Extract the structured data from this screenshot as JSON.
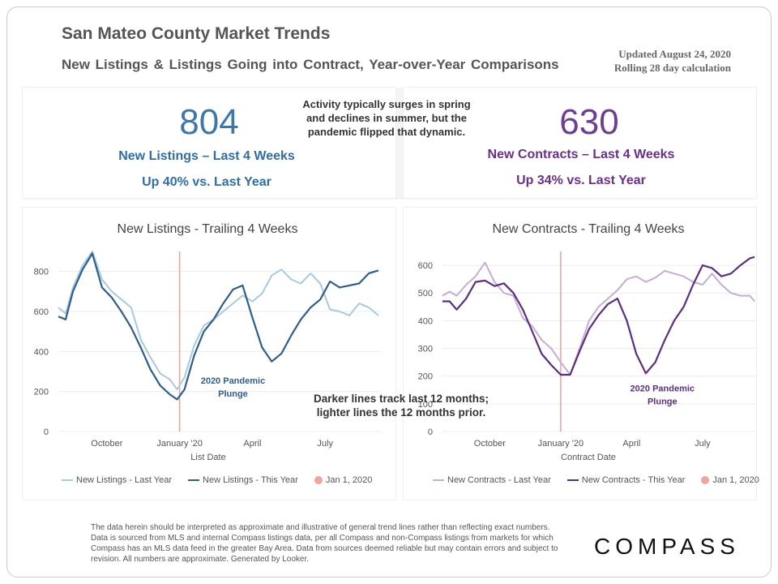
{
  "header": {
    "title": "San Mateo County Market Trends",
    "subtitle": "New Listings & Listings Going into Contract, Year-over-Year Comparisons",
    "updated_line1": "Updated August 24, 2020",
    "updated_line2": "Rolling 28 day calculation"
  },
  "kpis": {
    "listings_value": "804",
    "listings_label": "New Listings – Last 4 Weeks",
    "listings_change": "Up 40% vs. Last Year",
    "contracts_value": "630",
    "contracts_label": "New Contracts – Last 4 Weeks",
    "contracts_change": "Up 34% vs. Last Year",
    "note_line1": "Activity typically surges in spring",
    "note_line2": "and declines in summer, but the",
    "note_line3": "pandemic flipped that dynamic."
  },
  "colors": {
    "listings_this": "#2e5e8c",
    "listings_last": "#a6cbe0",
    "contracts_this": "#5c2d82",
    "contracts_last": "#c5add6",
    "jan_marker": "#f0a59b",
    "listings_text": "#2e6ea6",
    "contracts_text": "#6a2f8e"
  },
  "middle_note": {
    "line1": "Darker lines track last 12 months;",
    "line2": "lighter lines the 12 months prior."
  },
  "chart_data": [
    {
      "type": "line",
      "title": "New Listings - Trailing 4 Weeks",
      "xlabel": "List Date",
      "ylabel": "",
      "ylim": [
        0,
        900
      ],
      "yticks": [
        0,
        200,
        400,
        600,
        800
      ],
      "x_ticks": [
        {
          "label": "October",
          "month": 2
        },
        {
          "label": "January '20",
          "month": 5
        },
        {
          "label": "April",
          "month": 8
        },
        {
          "label": "July",
          "month": 11
        }
      ],
      "xlim": [
        0,
        13.3
      ],
      "marker_month": 5,
      "annotation_line1": "2020 Pandemic",
      "annotation_line2": "Plunge",
      "annotation_month": 7.2,
      "annotation_value": 240,
      "series": [
        {
          "name": "New Listings - Last Year",
          "x": [
            0,
            0.3,
            0.6,
            1.0,
            1.4,
            1.8,
            2.2,
            2.6,
            3.0,
            3.4,
            3.8,
            4.2,
            4.6,
            4.9,
            5.2,
            5.6,
            6.0,
            6.4,
            6.8,
            7.2,
            7.6,
            8.0,
            8.4,
            8.8,
            9.2,
            9.6,
            10.0,
            10.4,
            10.8,
            11.2,
            11.6,
            12.0,
            12.4,
            12.8,
            13.2
          ],
          "y": [
            620,
            590,
            720,
            830,
            900,
            760,
            700,
            660,
            620,
            460,
            370,
            290,
            260,
            210,
            270,
            430,
            530,
            560,
            600,
            640,
            680,
            650,
            690,
            780,
            810,
            760,
            740,
            790,
            740,
            610,
            600,
            580,
            640,
            620,
            580
          ]
        },
        {
          "name": "New Listings - This Year",
          "x": [
            0,
            0.3,
            0.6,
            1.0,
            1.4,
            1.8,
            2.2,
            2.6,
            3.0,
            3.4,
            3.8,
            4.2,
            4.6,
            4.9,
            5.2,
            5.6,
            6.0,
            6.4,
            6.8,
            7.2,
            7.6,
            8.0,
            8.4,
            8.8,
            9.2,
            9.6,
            10.0,
            10.4,
            10.8,
            11.2,
            11.6,
            12.0,
            12.4,
            12.8,
            13.2
          ],
          "y": [
            575,
            560,
            700,
            810,
            890,
            720,
            670,
            600,
            520,
            420,
            310,
            230,
            185,
            160,
            210,
            380,
            500,
            560,
            640,
            710,
            730,
            570,
            420,
            350,
            390,
            480,
            560,
            620,
            660,
            750,
            720,
            730,
            740,
            790,
            805
          ]
        }
      ]
    },
    {
      "type": "line",
      "title": "New Contracts - Trailing 4 Weeks",
      "xlabel": "Contract Date",
      "ylabel": "",
      "ylim": [
        0,
        650
      ],
      "yticks": [
        0,
        100,
        200,
        300,
        400,
        500,
        600
      ],
      "x_ticks": [
        {
          "label": "October",
          "month": 2
        },
        {
          "label": "January '20",
          "month": 5
        },
        {
          "label": "April",
          "month": 8
        },
        {
          "label": "July",
          "month": 11
        }
      ],
      "xlim": [
        0,
        13.3
      ],
      "marker_month": 5,
      "annotation_line1": "2020 Pandemic",
      "annotation_line2": "Plunge",
      "annotation_month": 9.3,
      "annotation_value": 145,
      "series": [
        {
          "name": "New Contracts - Last Year",
          "x": [
            0,
            0.3,
            0.6,
            1.0,
            1.4,
            1.8,
            2.2,
            2.6,
            3.0,
            3.4,
            3.8,
            4.2,
            4.6,
            5.0,
            5.4,
            5.8,
            6.2,
            6.6,
            7.0,
            7.4,
            7.8,
            8.2,
            8.6,
            9.0,
            9.4,
            9.8,
            10.2,
            10.6,
            11.0,
            11.4,
            11.8,
            12.2,
            12.6,
            13.0,
            13.2
          ],
          "y": [
            490,
            505,
            490,
            530,
            560,
            610,
            540,
            500,
            490,
            410,
            380,
            330,
            300,
            250,
            205,
            300,
            400,
            450,
            480,
            510,
            550,
            560,
            540,
            555,
            580,
            570,
            560,
            540,
            530,
            570,
            530,
            500,
            490,
            490,
            470
          ]
        },
        {
          "name": "New Contracts - This Year",
          "x": [
            0,
            0.3,
            0.6,
            1.0,
            1.4,
            1.8,
            2.2,
            2.6,
            3.0,
            3.4,
            3.8,
            4.2,
            4.6,
            5.0,
            5.4,
            5.8,
            6.2,
            6.6,
            7.0,
            7.4,
            7.8,
            8.2,
            8.6,
            9.0,
            9.4,
            9.8,
            10.2,
            10.6,
            11.0,
            11.4,
            11.8,
            12.2,
            12.6,
            13.0,
            13.2
          ],
          "y": [
            470,
            470,
            440,
            480,
            540,
            545,
            525,
            535,
            500,
            440,
            360,
            280,
            240,
            205,
            205,
            290,
            370,
            420,
            460,
            480,
            400,
            280,
            210,
            250,
            330,
            400,
            450,
            530,
            600,
            590,
            560,
            570,
            600,
            625,
            630
          ]
        }
      ]
    }
  ],
  "legend": {
    "listings_last": "New Listings - Last Year",
    "listings_this": "New Listings - This Year",
    "contracts_last": "New Contracts - Last Year",
    "contracts_this": "New Contracts - This Year",
    "jan": "Jan 1, 2020"
  },
  "footer": {
    "text": "The data herein should be interpreted as approximate and illustrative of general trend lines rather than reflecting exact numbers. Data is sourced from MLS and internal Compass listings data, per all Compass and non-Compass listings from markets for which Compass has an MLS data feed in the greater Bay Area. Data from sources deemed reliable but may contain errors and subject to revision. All numbers are approximate. Generated by Looker.",
    "logo": "COMPASS"
  }
}
